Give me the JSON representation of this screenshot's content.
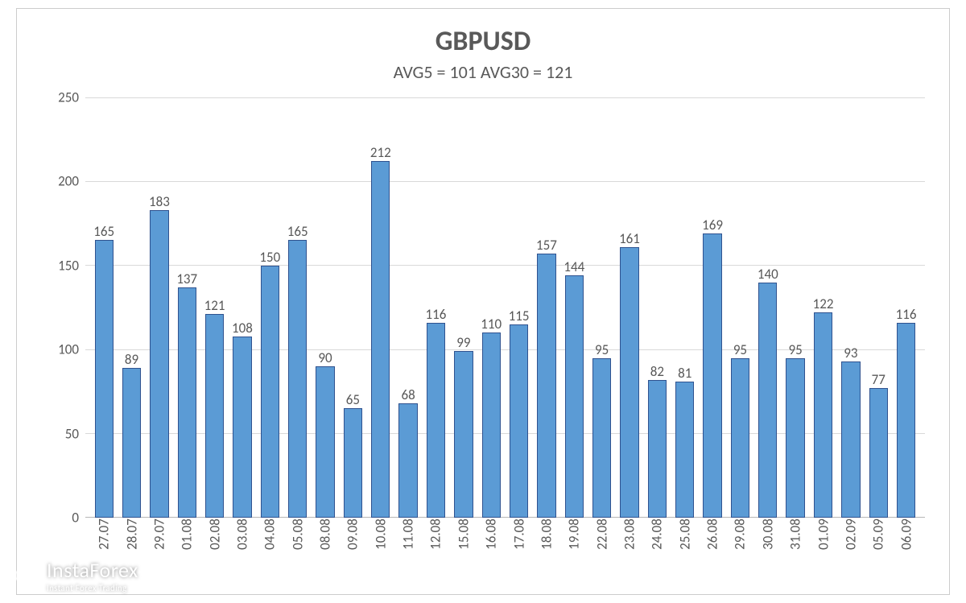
{
  "chart": {
    "type": "bar",
    "title": "GBPUSD",
    "title_fontsize": 34,
    "subtitle_parts": {
      "avg5_label": "AVG5 = ",
      "avg5_value": 101,
      "avg30_label": " AVG30 = ",
      "avg30_value": 121
    },
    "subtitle_fontsize": 22,
    "categories": [
      "27.07",
      "28.07",
      "29.07",
      "01.08",
      "02.08",
      "03.08",
      "04.08",
      "05.08",
      "08.08",
      "09.08",
      "10.08",
      "11.08",
      "12.08",
      "15.08",
      "16.08",
      "17.08",
      "18.08",
      "19.08",
      "22.08",
      "23.08",
      "24.08",
      "25.08",
      "26.08",
      "29.08",
      "30.08",
      "31.08",
      "01.09",
      "02.09",
      "05.09",
      "06.09"
    ],
    "values": [
      165,
      89,
      183,
      137,
      121,
      108,
      150,
      165,
      90,
      65,
      212,
      68,
      116,
      99,
      110,
      115,
      157,
      144,
      95,
      161,
      82,
      81,
      169,
      95,
      140,
      95,
      122,
      93,
      77,
      116
    ],
    "bar_color": "#5b9bd5",
    "bar_border_color": "#2f528f",
    "ylim": [
      0,
      250
    ],
    "ytick_step": 50,
    "yticks": [
      0,
      50,
      100,
      150,
      200,
      250
    ],
    "grid_color": "#d9d9d9",
    "axis_color": "#b7b7b7",
    "label_fontsize": 17,
    "text_color": "#595959",
    "background_color": "#ffffff",
    "bar_width": 0.68,
    "title_color": "#595959"
  },
  "watermark": {
    "brand": "InstaForex",
    "tagline": "Instant Forex Trading",
    "text_color": "#ffffff"
  }
}
